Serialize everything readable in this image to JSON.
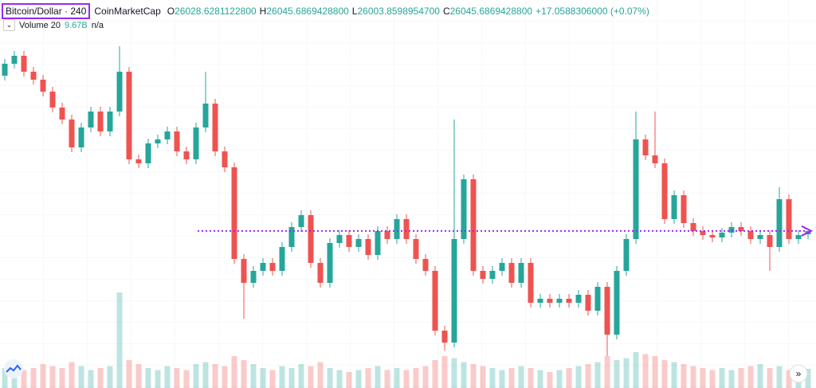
{
  "chart_data": {
    "type": "candlestick",
    "symbol": "Bitcoin/Dollar · 240",
    "source": "CoinMarketCap",
    "ohlc_legend": {
      "open_prefix": "O",
      "open": "26028.6281122800",
      "high_prefix": "H",
      "high": "26045.6869428800",
      "low_prefix": "L",
      "low": "26003.8598954700",
      "close_prefix": "C",
      "close": "26045.6869428800",
      "change": "+17.0588306000 (+0.07%)"
    },
    "volume_legend": {
      "name": "Volume 20",
      "value": "9.67B",
      "ma": "n/a"
    },
    "open": [
      26825,
      26885,
      26925,
      26845,
      26805,
      26745,
      26665,
      26605,
      26465,
      26565,
      26645,
      26545,
      26645,
      26845,
      26405,
      26385,
      26485,
      26505,
      26545,
      26445,
      26405,
      26565,
      26685,
      26445,
      26365,
      25905,
      25785,
      25845,
      25885,
      25845,
      25965,
      26065,
      26125,
      25885,
      25785,
      25985,
      26025,
      25965,
      26005,
      25925,
      26045,
      26005,
      26105,
      26005,
      25905,
      25845,
      25545,
      25485,
      26005,
      26305,
      25845,
      25805,
      25845,
      25885,
      25785,
      25885,
      25685,
      25705,
      25685,
      25705,
      25685,
      25725,
      25645,
      25765,
      25525,
      25845,
      26005,
      26505,
      26425,
      26385,
      26105,
      26225,
      26085,
      26045,
      26025,
      26013,
      26037,
      26065,
      26045,
      26005,
      26025,
      25965,
      26205,
      26005,
      26028.62811228
    ],
    "high": [
      26909,
      26949,
      26949,
      26869,
      26829,
      26769,
      26689,
      26629,
      26589,
      26669,
      26669,
      26669,
      26973,
      26869,
      26429,
      26509,
      26529,
      26569,
      26569,
      26469,
      26589,
      26845,
      26709,
      26469,
      26389,
      25929,
      25869,
      25909,
      25909,
      25989,
      26089,
      26149,
      26149,
      25909,
      26009,
      26049,
      26049,
      26029,
      26029,
      26069,
      26069,
      26129,
      26129,
      26029,
      25929,
      25869,
      25569,
      26605,
      26329,
      26329,
      25869,
      25869,
      25909,
      25909,
      25909,
      25909,
      25729,
      25729,
      25729,
      25729,
      25749,
      25749,
      25789,
      25789,
      25869,
      26029,
      26645,
      26529,
      26645,
      26409,
      26249,
      26249,
      26109,
      26069,
      26049,
      26061,
      26089,
      26089,
      26069,
      26049,
      26049,
      26265,
      26229,
      26049,
      26045.68694288
    ],
    "low": [
      26801,
      26861,
      26821,
      26781,
      26721,
      26641,
      26581,
      26441,
      26441,
      26541,
      26521,
      26521,
      26621,
      26381,
      26361,
      26361,
      26461,
      26481,
      26421,
      26381,
      26381,
      26541,
      26421,
      26341,
      25881,
      25605,
      25761,
      25821,
      25821,
      25821,
      25941,
      26041,
      25861,
      25761,
      25761,
      25961,
      25941,
      25941,
      25901,
      25901,
      25981,
      25981,
      25981,
      25881,
      25821,
      25521,
      25445,
      25461,
      25981,
      25821,
      25781,
      25781,
      25821,
      25761,
      25761,
      25661,
      25661,
      25661,
      25661,
      25661,
      25661,
      25621,
      25621,
      25417,
      25501,
      25821,
      25981,
      26401,
      26361,
      26081,
      26081,
      26061,
      26021,
      26001,
      25989,
      25989,
      26013,
      26021,
      25981,
      25981,
      25845,
      25941,
      25981,
      25981,
      26003.85989547
    ],
    "close": [
      26885,
      26925,
      26845,
      26805,
      26745,
      26665,
      26605,
      26465,
      26565,
      26645,
      26545,
      26645,
      26845,
      26405,
      26385,
      26485,
      26505,
      26545,
      26445,
      26405,
      26565,
      26685,
      26445,
      26365,
      25905,
      25785,
      25845,
      25885,
      25845,
      25965,
      26065,
      26125,
      25885,
      25785,
      25985,
      26025,
      25965,
      26005,
      25925,
      26045,
      26005,
      26105,
      26005,
      25905,
      25845,
      25545,
      25485,
      26005,
      26305,
      25845,
      25805,
      25845,
      25885,
      25785,
      25885,
      25685,
      25705,
      25685,
      25705,
      25685,
      25725,
      25645,
      25765,
      25525,
      25845,
      26005,
      26505,
      26425,
      26385,
      26105,
      26225,
      26085,
      26045,
      26025,
      26013,
      26037,
      26065,
      26045,
      26005,
      26025,
      25965,
      26205,
      26005,
      26025,
      26045.68694288
    ],
    "volume": [
      10,
      11,
      9,
      10,
      12,
      11,
      10,
      13,
      11,
      9,
      10,
      11,
      48,
      14,
      12,
      10,
      9,
      11,
      10,
      9,
      12,
      13,
      12,
      11,
      16,
      14,
      12,
      10,
      9,
      11,
      10,
      12,
      11,
      13,
      10,
      9,
      8,
      9,
      10,
      11,
      9,
      10,
      9,
      10,
      11,
      14,
      16,
      15,
      13,
      12,
      11,
      10,
      9,
      10,
      11,
      10,
      9,
      8,
      9,
      10,
      11,
      12,
      13,
      16,
      14,
      15,
      18,
      17,
      16,
      14,
      13,
      12,
      11,
      10,
      9,
      10,
      9,
      10,
      11,
      12,
      10,
      11,
      9,
      10,
      9.67
    ],
    "ylim": [
      25385,
      27205
    ],
    "volume_ylim": [
      0,
      100
    ],
    "up_color": "#26a69a",
    "down_color": "#ef5350",
    "price_line_color": "#9c27f5"
  }
}
